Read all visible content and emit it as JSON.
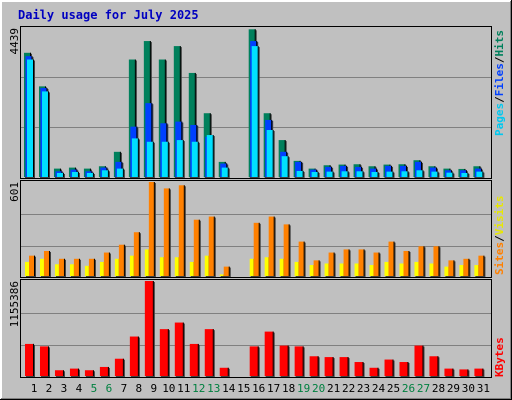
{
  "title": "Daily usage for July 2025",
  "colors": {
    "background": "#c0c0c0",
    "title": "#0000ff",
    "hits": "#00805c",
    "files": "#0040ff",
    "pages": "#00e0ff",
    "visits": "#ffff00",
    "sites": "#ff8000",
    "kbytes": "#ff0000",
    "weekend_label": "#008040"
  },
  "chart_data": [
    {
      "type": "bar",
      "name": "hits-files-pages",
      "categories": [
        "1",
        "2",
        "3",
        "4",
        "5",
        "6",
        "7",
        "8",
        "9",
        "10",
        "11",
        "12",
        "13",
        "14",
        "15",
        "16",
        "17",
        "18",
        "19",
        "20",
        "21",
        "22",
        "23",
        "24",
        "25",
        "26",
        "27",
        "28",
        "29",
        "30",
        "31"
      ],
      "ymax_label": "4439",
      "ylim": [
        0,
        4439
      ],
      "legend": [
        "Pages",
        "/",
        "Files",
        "/",
        "Hits"
      ],
      "series": [
        {
          "name": "Hits",
          "values": [
            3700,
            2700,
            250,
            280,
            250,
            320,
            750,
            3500,
            4050,
            3500,
            3900,
            3100,
            1900,
            450,
            0,
            4400,
            1900,
            1100,
            480,
            250,
            350,
            370,
            380,
            320,
            370,
            380,
            500,
            320,
            250,
            240,
            320
          ]
        },
        {
          "name": "Files",
          "values": [
            3600,
            2650,
            170,
            220,
            170,
            280,
            450,
            1500,
            2200,
            1600,
            1650,
            1550,
            1200,
            400,
            0,
            4050,
            1700,
            750,
            450,
            220,
            300,
            330,
            300,
            250,
            330,
            330,
            450,
            280,
            200,
            200,
            250
          ]
        },
        {
          "name": "Pages",
          "values": [
            3500,
            2550,
            120,
            150,
            120,
            200,
            250,
            1150,
            1050,
            1050,
            1100,
            1050,
            1250,
            280,
            0,
            3900,
            1400,
            620,
            180,
            150,
            160,
            170,
            170,
            150,
            160,
            170,
            200,
            160,
            130,
            120,
            160
          ]
        }
      ]
    },
    {
      "type": "bar",
      "name": "visits-sites",
      "categories": [
        "1",
        "2",
        "3",
        "4",
        "5",
        "6",
        "7",
        "8",
        "9",
        "10",
        "11",
        "12",
        "13",
        "14",
        "15",
        "16",
        "17",
        "18",
        "19",
        "20",
        "21",
        "22",
        "23",
        "24",
        "25",
        "26",
        "27",
        "28",
        "29",
        "30",
        "31"
      ],
      "ymax_label": "601",
      "ylim": [
        0,
        601
      ],
      "legend": [
        "Sites",
        "/",
        "Visits"
      ],
      "series": [
        {
          "name": "Visits",
          "values": [
            90,
            110,
            75,
            75,
            65,
            90,
            110,
            130,
            170,
            120,
            120,
            90,
            130,
            10,
            0,
            110,
            120,
            110,
            90,
            70,
            80,
            80,
            80,
            70,
            90,
            80,
            90,
            80,
            60,
            70,
            70
          ]
        },
        {
          "name": "Sites",
          "values": [
            130,
            160,
            110,
            110,
            110,
            150,
            200,
            280,
            601,
            560,
            580,
            360,
            380,
            60,
            0,
            340,
            380,
            330,
            220,
            100,
            150,
            170,
            170,
            150,
            220,
            160,
            190,
            190,
            100,
            110,
            130
          ]
        }
      ]
    },
    {
      "type": "bar",
      "name": "kbytes",
      "categories": [
        "1",
        "2",
        "3",
        "4",
        "5",
        "6",
        "7",
        "8",
        "9",
        "10",
        "11",
        "12",
        "13",
        "14",
        "15",
        "16",
        "17",
        "18",
        "19",
        "20",
        "21",
        "22",
        "23",
        "24",
        "25",
        "26",
        "27",
        "28",
        "29",
        "30",
        "31"
      ],
      "ymax_label": "1155386",
      "ylim": [
        0,
        1155386
      ],
      "legend": [
        "KBytes"
      ],
      "series": [
        {
          "name": "KBytes",
          "values": [
            390000,
            360000,
            70000,
            90000,
            70000,
            110000,
            210000,
            480000,
            1155386,
            570000,
            650000,
            390000,
            570000,
            100000,
            0,
            360000,
            540000,
            370000,
            360000,
            240000,
            230000,
            230000,
            170000,
            100000,
            200000,
            170000,
            370000,
            240000,
            90000,
            80000,
            90000
          ]
        }
      ]
    }
  ],
  "weekend_days": [
    5,
    6,
    12,
    13,
    19,
    20,
    26,
    27
  ]
}
